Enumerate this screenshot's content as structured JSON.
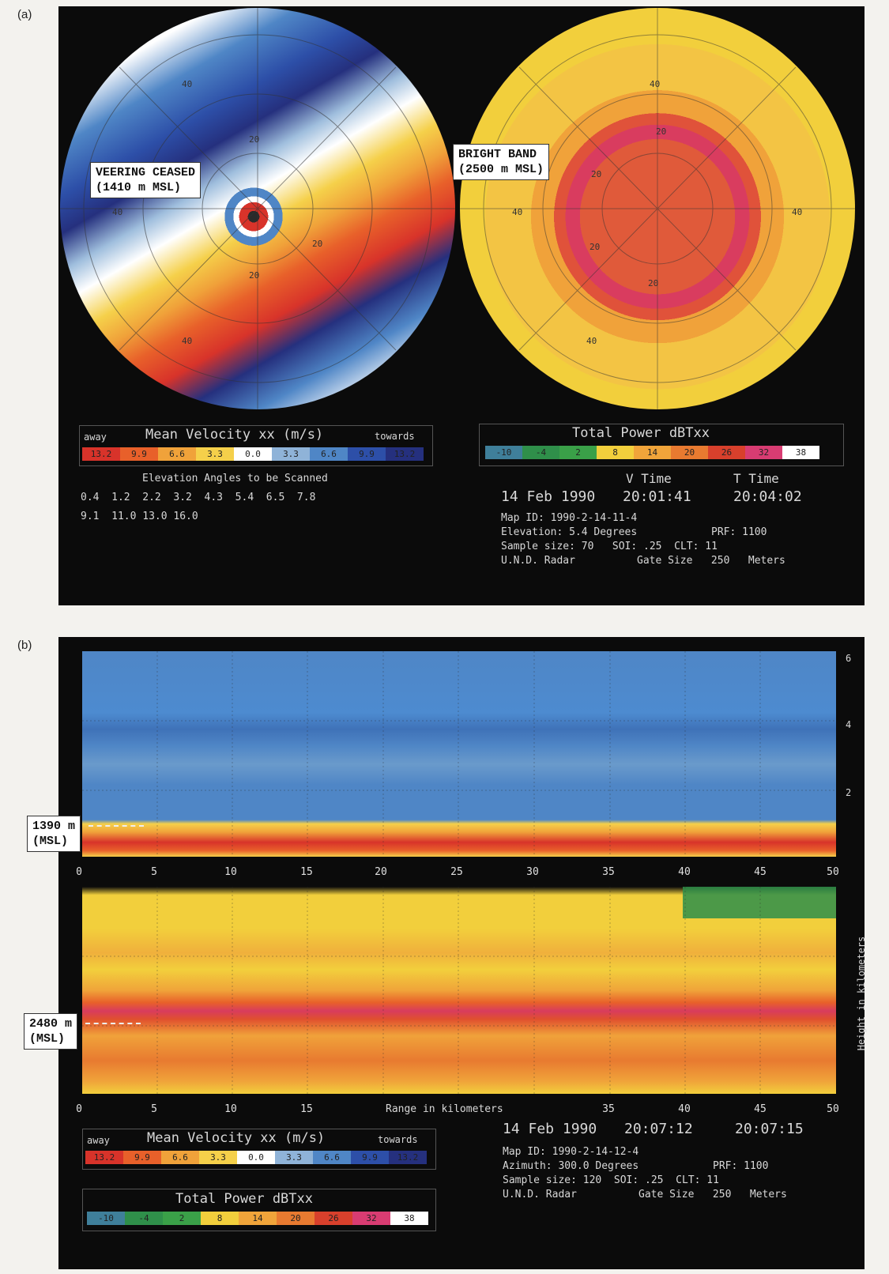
{
  "panel_a": {
    "label": "(a)",
    "annotation_veering": [
      "VEERING CEASED",
      "(1410 m MSL)"
    ],
    "annotation_brightband": [
      "BRIGHT BAND",
      "(2500 m MSL)"
    ],
    "ring_labels_left": [
      "40",
      "20",
      "40",
      "20",
      "20",
      "40"
    ],
    "ring_labels_right": [
      "40",
      "20",
      "20",
      "40",
      "40",
      "20",
      "20",
      "40"
    ],
    "velocity_legend": {
      "away": "away",
      "title": "Mean Velocity xx (m/s)",
      "towards": "towards",
      "values": [
        "13.2",
        "9.9",
        "6.6",
        "3.3",
        "0.0",
        "3.3",
        "6.6",
        "9.9",
        "13.2"
      ],
      "colors": [
        "#d8332a",
        "#e8602a",
        "#f0a23a",
        "#f5d04a",
        "#ffffff",
        "#8fb3d8",
        "#4f86c6",
        "#2d4fa8",
        "#25307e"
      ]
    },
    "scan_title": "Elevation Angles to be Scanned",
    "scan_row1": "0.4  1.2  2.2  3.2  4.3  5.4  6.5  7.8",
    "scan_row2": "9.1  11.0 13.0 16.0",
    "power_legend": {
      "title": "Total Power dBTxx",
      "values": [
        "-10",
        "-4",
        "2",
        "8",
        "14",
        "20",
        "26",
        "32",
        "38"
      ],
      "colors": [
        "#3f7f9a",
        "#2f8f4a",
        "#3aa048",
        "#f2cf3c",
        "#f0a43a",
        "#e87a30",
        "#d8402c",
        "#d83c72",
        "#ffffff"
      ]
    },
    "v_time_label": "V Time",
    "t_time_label": "T Time",
    "date": "14 Feb 1990",
    "v_time": "20:01:41",
    "t_time": "20:04:02",
    "map_id": "Map ID: 1990-2-14-11-4",
    "elevation": "Elevation: 5.4 Degrees",
    "prf": "PRF: 1100",
    "sample": "Sample size: 70   SOI: .25  CLT: 11",
    "radar": "U.N.D. Radar",
    "gate": "Gate Size   250   Meters"
  },
  "panel_b": {
    "label": "(b)",
    "annotation_top": [
      "1390 m",
      "(MSL)"
    ],
    "annotation_bottom": [
      "2480 m",
      "(MSL)"
    ],
    "x_ticks": [
      "0",
      "5",
      "10",
      "15",
      "20",
      "25",
      "30",
      "35",
      "40",
      "45",
      "50"
    ],
    "y_ticks_right": [
      "6",
      "4",
      "2"
    ],
    "ylabel": "Height in kilometers",
    "xlabel": "Range in kilometers",
    "date": "14 Feb 1990",
    "v_time": "20:07:12",
    "t_time": "20:07:15",
    "map_id": "Map ID: 1990-2-14-12-4",
    "azimuth": "Azimuth: 300.0 Degrees",
    "prf": "PRF: 1100",
    "sample": "Sample size: 120  SOI: .25  CLT: 11",
    "radar": "U.N.D. Radar",
    "gate": "Gate Size   250   Meters",
    "velocity_legend": {
      "away": "away",
      "title": "Mean Velocity xx (m/s)",
      "towards": "towards",
      "values": [
        "13.2",
        "9.9",
        "6.6",
        "3.3",
        "0.0",
        "3.3",
        "6.6",
        "9.9",
        "13.2"
      ]
    },
    "power_legend": {
      "title": "Total Power dBTxx",
      "values": [
        "-10",
        "-4",
        "2",
        "8",
        "14",
        "20",
        "26",
        "32",
        "38"
      ]
    }
  }
}
